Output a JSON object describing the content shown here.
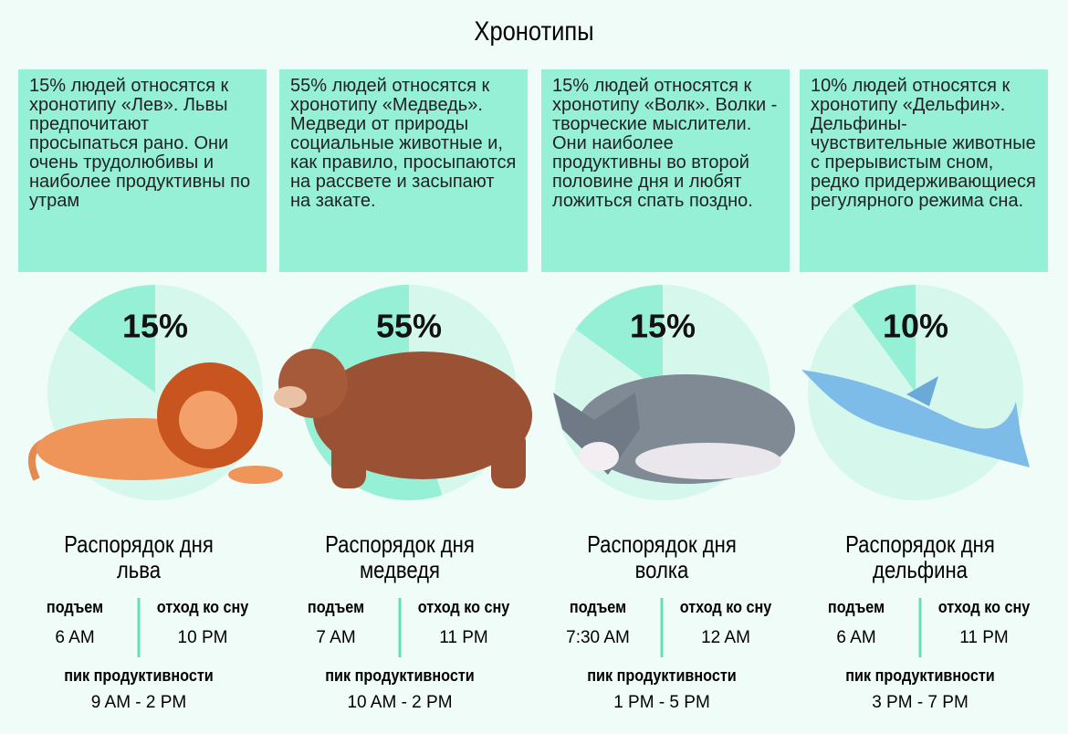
{
  "title": "Хронотипы",
  "cards": [
    {
      "description": "15% людей относятся к хронотипу «Лев». Львы предпочитают просыпаться рано. Они очень трудолюбивы и наиболее продуктивны по утрам",
      "percent": {
        "value": 15,
        "label": "15%"
      },
      "schedule_title": [
        "Распорядок дня",
        "льва"
      ],
      "wake_label": "подъем",
      "wake": "6 AM",
      "sleep_label": "отход ко сну",
      "sleep": "10 PM",
      "peak_label": "пик продуктивности",
      "peak": "9 AM - 2 PM"
    },
    {
      "description": "55% людей относятся к хронотипу «Медведь». Медведи от природы социальные животные и, как правило, просыпаются на рассвете и засыпают на закате.",
      "percent": {
        "value": 55,
        "label": "55%"
      },
      "schedule_title": [
        "Распорядок дня",
        "медведя"
      ],
      "wake_label": "подъем",
      "wake": "7 AM",
      "sleep_label": "отход ко сну",
      "sleep": "11 PM",
      "peak_label": "пик продуктивности",
      "peak": "10 AM - 2 PM"
    },
    {
      "description": "15% людей относятся к хронотипу «Волк». Волки - творческие мыслители. Они наиболее продуктивны во второй половине дня и любят ложиться спать поздно.",
      "percent": {
        "value": 15,
        "label": "15%"
      },
      "schedule_title": [
        "Распорядок дня",
        "волка"
      ],
      "wake_label": "подъем",
      "wake": "7:30 AM",
      "sleep_label": "отход ко сну",
      "sleep": "12 AM",
      "peak_label": "пик продуктивности",
      "peak": "1 PM - 5 PM"
    },
    {
      "description": "10% людей относятся к хронотипу «Дельфин». Дельфины-чувствительные животные с прерывистым сном, редко придерживающиеся регулярного режима сна.",
      "percent": {
        "value": 10,
        "label": "10%"
      },
      "schedule_title": [
        "Распорядок дня",
        "дельфина"
      ],
      "wake_label": "подъем",
      "wake": "6 AM",
      "sleep_label": "отход ко сну",
      "sleep": "11 PM",
      "peak_label": "пик продуктивности",
      "peak": "3 PM - 7 PM"
    }
  ]
}
